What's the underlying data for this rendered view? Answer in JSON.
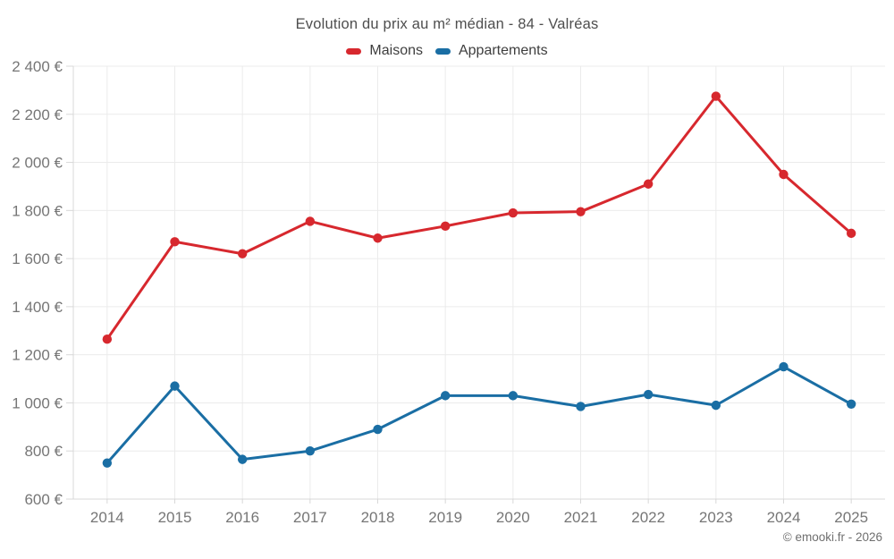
{
  "title": "Evolution du prix au m² médian - 84 - Valréas",
  "attribution": "© emooki.fr - 2026",
  "colors": {
    "maisons": "#d7282e",
    "appartements": "#1a6ea4",
    "grid": "#ebebeb",
    "axis": "#d8d8d8",
    "tick_text": "#767676",
    "title_text": "#4e4e4e",
    "legend_text": "#3e3e3e"
  },
  "chart_data": {
    "type": "line",
    "x": [
      "2014",
      "2015",
      "2016",
      "2017",
      "2018",
      "2019",
      "2020",
      "2021",
      "2022",
      "2023",
      "2024",
      "2025"
    ],
    "series": [
      {
        "name": "Maisons",
        "color": "#d7282e",
        "values": [
          1265,
          1670,
          1620,
          1755,
          1685,
          1735,
          1790,
          1795,
          1910,
          2275,
          1950,
          1705
        ]
      },
      {
        "name": "Appartements",
        "color": "#1a6ea4",
        "values": [
          750,
          1070,
          765,
          800,
          890,
          1030,
          1030,
          985,
          1035,
          990,
          1150,
          995
        ]
      }
    ],
    "title": "Evolution du prix au m² médian - 84 - Valréas",
    "xlabel": "",
    "ylabel": "",
    "ylim": [
      600,
      2400
    ],
    "ytick_step": 200,
    "ytick_suffix": " €",
    "grid": true,
    "legend_position": "top",
    "marker": "circle",
    "attribution": "© emooki.fr - 2026"
  }
}
